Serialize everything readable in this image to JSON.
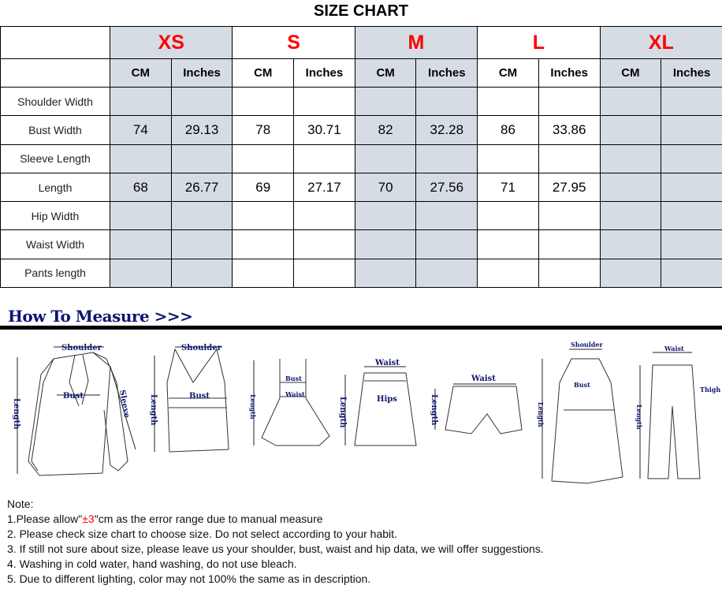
{
  "title": "SIZE CHART",
  "sizes": [
    "XS",
    "S",
    "M",
    "L",
    "XL"
  ],
  "units": [
    "CM",
    "Inches"
  ],
  "shaded_color": "#d6dce4",
  "size_label_color": "#ff0000",
  "rows": [
    {
      "label": "Shoulder Width",
      "values": [
        "",
        "",
        "",
        "",
        "",
        "",
        "",
        "",
        "",
        ""
      ]
    },
    {
      "label": "Bust Width",
      "values": [
        "74",
        "29.13",
        "78",
        "30.71",
        "82",
        "32.28",
        "86",
        "33.86",
        "",
        ""
      ]
    },
    {
      "label": "Sleeve Length",
      "values": [
        "",
        "",
        "",
        "",
        "",
        "",
        "",
        "",
        "",
        ""
      ]
    },
    {
      "label": "Length",
      "values": [
        "68",
        "26.77",
        "69",
        "27.17",
        "70",
        "27.56",
        "71",
        "27.95",
        "",
        ""
      ]
    },
    {
      "label": "Hip Width",
      "values": [
        "",
        "",
        "",
        "",
        "",
        "",
        "",
        "",
        "",
        ""
      ]
    },
    {
      "label": "Waist Width",
      "values": [
        "",
        "",
        "",
        "",
        "",
        "",
        "",
        "",
        "",
        ""
      ]
    },
    {
      "label": "Pants length",
      "values": [
        "",
        "",
        "",
        "",
        "",
        "",
        "",
        "",
        "",
        ""
      ]
    }
  ],
  "how_to_measure": {
    "heading": "How To Measure >>>",
    "labels": {
      "shoulder": "Shoulder",
      "length": "Length",
      "bust": "Bust",
      "sleeve": "Sleeve",
      "waist": "Waist",
      "hips": "Hips",
      "thigh": "Thigh"
    }
  },
  "notes": {
    "heading": "Note:",
    "n1_before": "1.Please allow\"",
    "n1_red": "±3",
    "n1_after": "\"cm as the error range due to manual measure",
    "n2": "2. Please check size chart to choose size. Do not select according to your habit.",
    "n3": "3. If still not sure about size, please leave us your shoulder, bust, waist and hip data, we will offer suggestions.",
    "n4": "4. Washing in cold water, hand washing, do not use bleach.",
    "n5": "5. Due to different lighting, color may not 100% the same as in description."
  }
}
